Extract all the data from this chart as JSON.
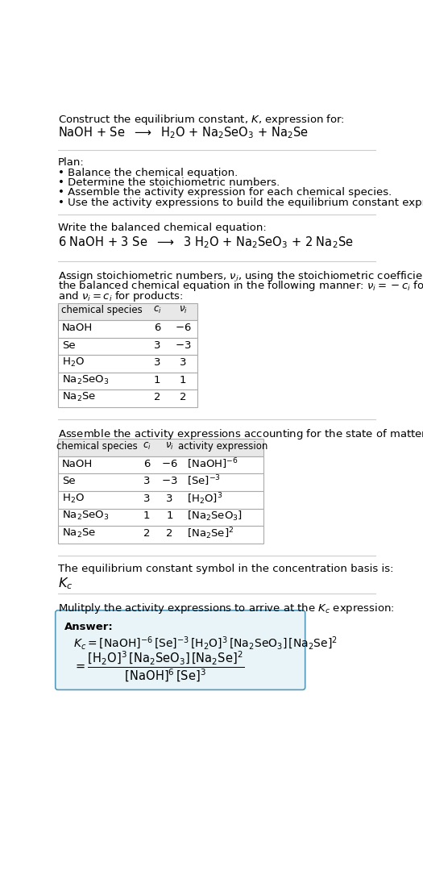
{
  "title_line1": "Construct the equilibrium constant, $K$, expression for:",
  "reaction_unbalanced": "NaOH + Se  $\\longrightarrow$  H$_2$O + Na$_2$SeO$_3$ + Na$_2$Se",
  "plan_header": "Plan:",
  "plan_items": [
    "• Balance the chemical equation.",
    "• Determine the stoichiometric numbers.",
    "• Assemble the activity expression for each chemical species.",
    "• Use the activity expressions to build the equilibrium constant expression."
  ],
  "balanced_header": "Write the balanced chemical equation:",
  "reaction_balanced": "6 NaOH + 3 Se  $\\longrightarrow$  3 H$_2$O + Na$_2$SeO$_3$ + 2 Na$_2$Se",
  "stoich_lines": [
    "Assign stoichiometric numbers, $\\nu_i$, using the stoichiometric coefficients, $c_i$, from",
    "the balanced chemical equation in the following manner: $\\nu_i = -c_i$ for reactants",
    "and $\\nu_i = c_i$ for products:"
  ],
  "table1_headers": [
    "chemical species",
    "$c_i$",
    "$\\nu_i$"
  ],
  "table1_rows": [
    [
      "NaOH",
      "6",
      "$-6$"
    ],
    [
      "Se",
      "3",
      "$-3$"
    ],
    [
      "H$_2$O",
      "3",
      "3"
    ],
    [
      "Na$_2$SeO$_3$",
      "1",
      "1"
    ],
    [
      "Na$_2$Se",
      "2",
      "2"
    ]
  ],
  "activity_header": "Assemble the activity expressions accounting for the state of matter and $\\nu_i$:",
  "table2_headers": [
    "chemical species",
    "$c_i$",
    "$\\nu_i$",
    "activity expression"
  ],
  "table2_rows": [
    [
      "NaOH",
      "6",
      "$-6$",
      "$[\\mathrm{NaOH}]^{-6}$"
    ],
    [
      "Se",
      "3",
      "$-3$",
      "$[\\mathrm{Se}]^{-3}$"
    ],
    [
      "H$_2$O",
      "3",
      "3",
      "$[\\mathrm{H_2O}]^{3}$"
    ],
    [
      "Na$_2$SeO$_3$",
      "1",
      "1",
      "$[\\mathrm{Na_2SeO_3}]$"
    ],
    [
      "Na$_2$Se",
      "2",
      "2",
      "$[\\mathrm{Na_2Se}]^{2}$"
    ]
  ],
  "kc_header": "The equilibrium constant symbol in the concentration basis is:",
  "kc_symbol": "$K_c$",
  "multiply_header": "Mulitply the activity expressions to arrive at the $K_c$ expression:",
  "bg_color": "#ffffff",
  "table_header_bg": "#e8e8e8",
  "table_border_color": "#aaaaaa",
  "answer_box_bg": "#e8f4f8",
  "answer_box_border": "#5599bb",
  "line_color": "#cccccc",
  "font_size": 9.5,
  "font_size_small": 8.5,
  "font_size_reaction": 10.5
}
